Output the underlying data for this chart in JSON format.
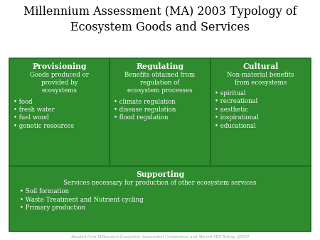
{
  "title": "Millennium Assessment (MA) 2003 Typology of\nEcosystem Goods and Services",
  "title_fontsize": 11.5,
  "bg_color": "#ffffff",
  "cell_bg": "#2E8B2E",
  "cell_border": "#1a6b1a",
  "text_color": "#ffffff",
  "footer": "Adapted from Millennium Ecosystem Assessment Components and Altered MEI Rating (2003)",
  "footer_color": "#7ab87a",
  "cells": {
    "provisioning": {
      "title": "Provisioning",
      "subtitle": "Goods produced or\nprovided by\necosystems",
      "bullets": [
        "food",
        "fresh water",
        "fuel wood",
        "genetic resources"
      ]
    },
    "regulating": {
      "title": "Regulating",
      "subtitle": "Benefits obtained from\nregulation of\necosystem processes",
      "bullets": [
        "climate regulation",
        "disease regulation",
        "flood regulation"
      ]
    },
    "cultural": {
      "title": "Cultural",
      "subtitle": "Non-material benefits\nfrom ecosystems",
      "bullets": [
        "spiritual",
        "recreational",
        "aesthetic",
        "inspirational",
        "educational"
      ]
    },
    "supporting": {
      "title": "Supporting",
      "subtitle": "Services necessary for production of other ecosystem services",
      "bullets": [
        "Soil formation",
        "Waste Treatment and Nutrient cycling",
        "Primary production"
      ]
    }
  }
}
